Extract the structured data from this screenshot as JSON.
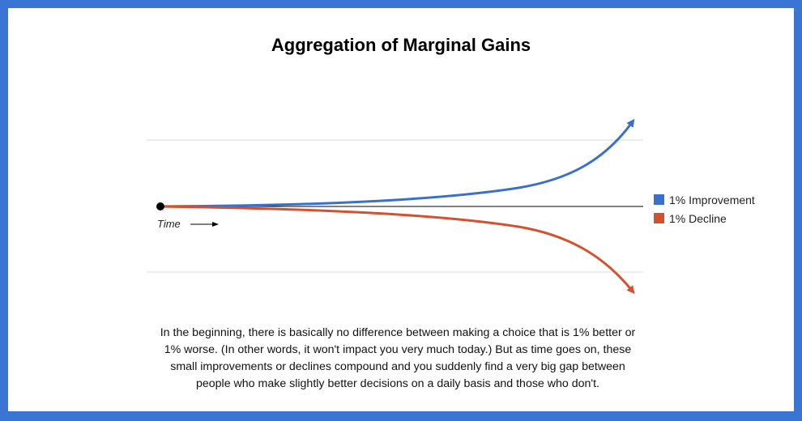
{
  "chart_data": {
    "type": "line",
    "title": "Aggregation of Marginal Gains",
    "xlabel": "Time",
    "ylabel": "",
    "grid": true,
    "legend_position": "right",
    "series": [
      {
        "name": "1% Improvement",
        "color": "#3a70cc",
        "trend": "exponential growth",
        "values": [
          0,
          0.02,
          0.05,
          0.1,
          0.18,
          0.3,
          0.5,
          0.78,
          1.2,
          1.8
        ]
      },
      {
        "name": "1% Decline",
        "color": "#d4512f",
        "trend": "accelerating decline",
        "values": [
          0,
          -0.02,
          -0.05,
          -0.1,
          -0.18,
          -0.3,
          -0.5,
          -0.78,
          -1.2,
          -1.8
        ]
      }
    ]
  },
  "caption": "In the beginning, there is basically no difference between making a choice that is 1% better or 1% worse. (In other words, it won't impact you very much today.) But as time goes on, these small improvements or declines compound and you suddenly find a very big gap between people who make slightly better decisions on a daily basis and those who don't.",
  "colors": {
    "frame": "#3a75d4",
    "improvement": "#3a70cc",
    "decline": "#d4512f"
  }
}
